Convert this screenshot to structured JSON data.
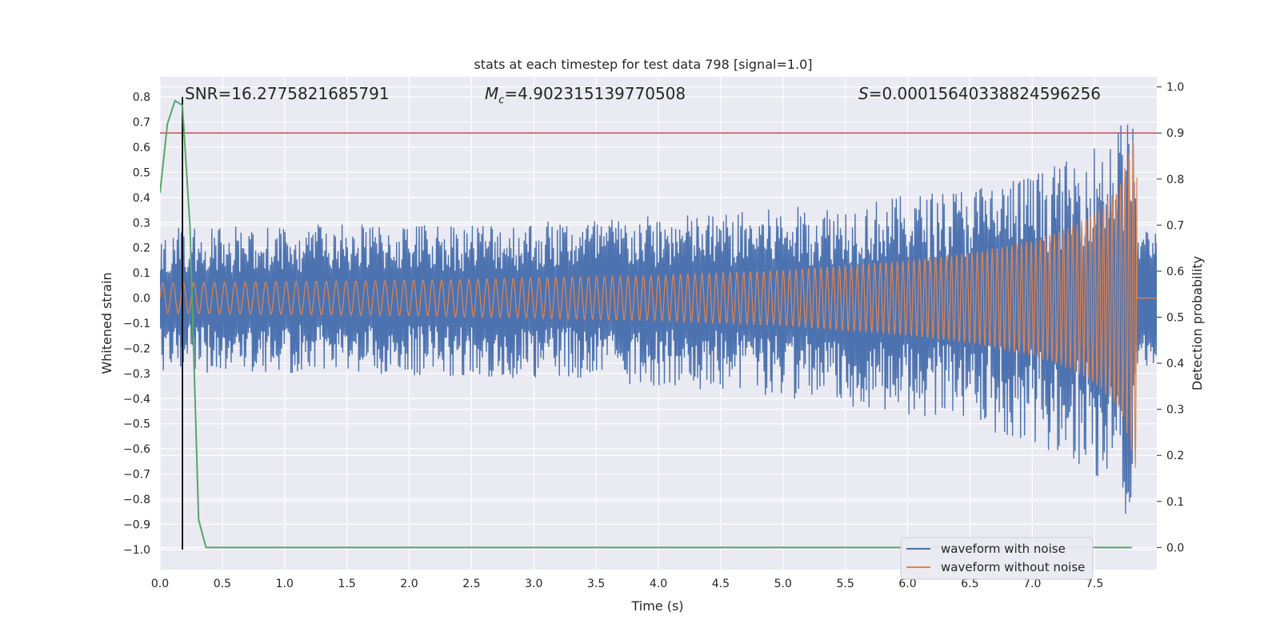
{
  "chart_data": {
    "type": "line",
    "title": "stats at each timestep for test data 798 [signal=1.0]",
    "xlabel": "Time (s)",
    "ylabel": "Whitened strain",
    "ylabel_right": "Detection probability",
    "xlim": [
      0.0,
      8.0
    ],
    "ylim": [
      -1.08,
      0.88
    ],
    "ylim_right": [
      -0.048,
      1.022
    ],
    "xticks": [
      "0.0",
      "0.5",
      "1.0",
      "1.5",
      "2.0",
      "2.5",
      "3.0",
      "3.5",
      "4.0",
      "4.5",
      "5.0",
      "5.5",
      "6.0",
      "6.5",
      "7.0",
      "7.5"
    ],
    "yticks": [
      "0.8",
      "0.7",
      "0.6",
      "0.5",
      "0.4",
      "0.3",
      "0.2",
      "0.1",
      "0.0",
      "−0.1",
      "−0.2",
      "−0.3",
      "−0.4",
      "−0.5",
      "−0.6",
      "−0.7",
      "−0.8",
      "−0.9",
      "−1.0"
    ],
    "yticks_right": [
      "1.0",
      "0.9",
      "0.8",
      "0.7",
      "0.6",
      "0.5",
      "0.4",
      "0.3",
      "0.2",
      "0.1",
      "0.0"
    ],
    "annotations": {
      "snr": "SNR=16.2775821685791",
      "mc_symbol": "M",
      "mc_sub": "c",
      "mc_value": "=4.902315139770508",
      "s_symbol": "S",
      "s_value": "=0.00015640338824596256"
    },
    "series": [
      {
        "name": "waveform with noise",
        "color": "#4c72b0",
        "envelope_x": [
          0.0,
          1.0,
          2.0,
          3.0,
          4.0,
          4.5,
          5.0,
          5.5,
          6.0,
          6.5,
          7.0,
          7.3,
          7.5,
          7.7,
          7.8,
          7.84
        ],
        "envelope_upper": [
          0.28,
          0.29,
          0.3,
          0.31,
          0.33,
          0.34,
          0.36,
          0.38,
          0.41,
          0.45,
          0.5,
          0.55,
          0.62,
          0.7,
          0.78,
          0.3
        ],
        "envelope_lower": [
          -0.3,
          -0.3,
          -0.31,
          -0.32,
          -0.35,
          -0.37,
          -0.4,
          -0.43,
          -0.47,
          -0.52,
          -0.58,
          -0.64,
          -0.7,
          -0.78,
          -0.95,
          -0.3
        ],
        "post_merger_amplitude": 0.28
      },
      {
        "name": "waveform without noise",
        "color": "#dd8452",
        "envelope_x": [
          0.0,
          1.0,
          2.0,
          3.0,
          4.0,
          5.0,
          6.0,
          6.5,
          7.0,
          7.3,
          7.5,
          7.7,
          7.8,
          7.84
        ],
        "envelope_amplitude": [
          0.06,
          0.065,
          0.07,
          0.08,
          0.09,
          0.11,
          0.15,
          0.18,
          0.23,
          0.28,
          0.34,
          0.44,
          0.62,
          0.7
        ],
        "merger_time": 7.84
      },
      {
        "name": "detection probability",
        "color": "#55a868",
        "axis": "right",
        "x": [
          0.0,
          0.06,
          0.12,
          0.18,
          0.24,
          0.31,
          0.37,
          0.5,
          1.0,
          2.0,
          3.0,
          4.0,
          5.0,
          6.0,
          7.0,
          7.8
        ],
        "values": [
          0.77,
          0.92,
          0.97,
          0.96,
          0.7,
          0.06,
          0.0,
          0.0,
          0.0,
          0.0,
          0.0,
          0.0,
          0.0,
          0.0,
          0.0,
          0.0
        ]
      }
    ],
    "threshold": {
      "value": 0.9,
      "axis": "right",
      "color": "#c44e52"
    },
    "marker_line": {
      "x": 0.18,
      "y_from": -1.0,
      "y_to": 0.8,
      "color": "#000000"
    },
    "legend": {
      "position": "lower-right",
      "entries": [
        "waveform with noise",
        "waveform without noise"
      ]
    },
    "background": "#eaeaf2"
  }
}
